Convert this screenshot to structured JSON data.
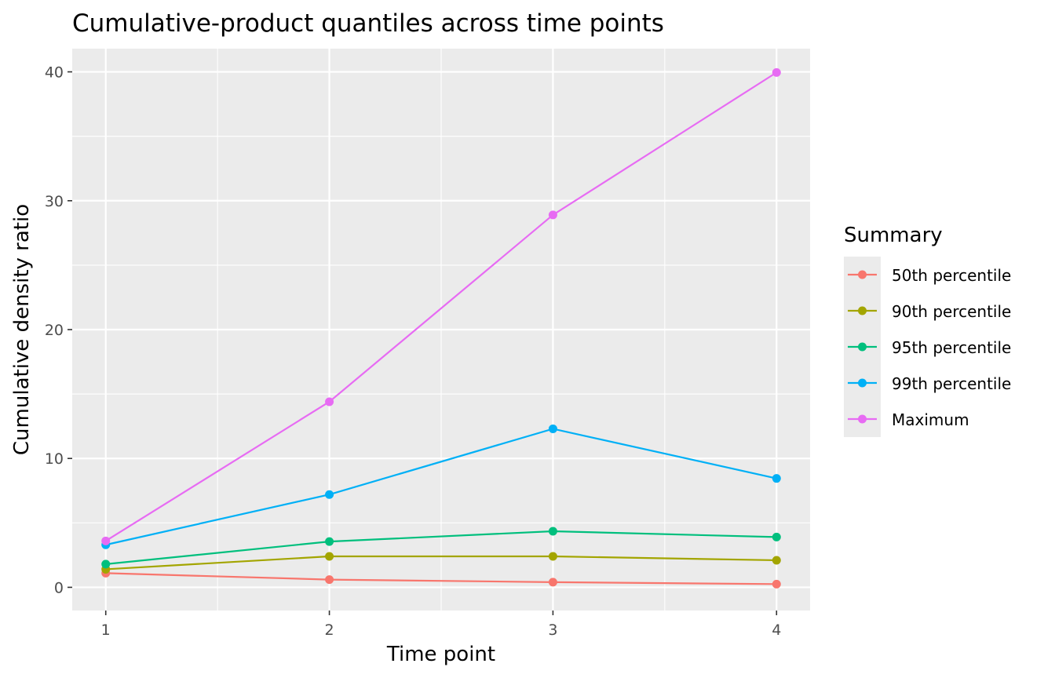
{
  "chart_data": {
    "type": "line",
    "title": "Cumulative-product quantiles across time points",
    "xlabel": "Time point",
    "ylabel": "Cumulative density ratio",
    "x": [
      1,
      2,
      3,
      4
    ],
    "x_ticks": [
      "1",
      "2",
      "3",
      "4"
    ],
    "y_ticks": [
      "0",
      "10",
      "20",
      "30",
      "40"
    ],
    "xlim": [
      0.85,
      4.15
    ],
    "ylim": [
      -1.8,
      41.8
    ],
    "grid": true,
    "legend_title": "Summary",
    "legend_position": "right",
    "series": [
      {
        "name": "50th percentile",
        "color": "#F8766D",
        "values": [
          1.1,
          0.6,
          0.4,
          0.25
        ]
      },
      {
        "name": "90th percentile",
        "color": "#A3A500",
        "values": [
          1.4,
          2.4,
          2.4,
          2.1
        ]
      },
      {
        "name": "95th percentile",
        "color": "#00BF7D",
        "values": [
          1.8,
          3.55,
          4.35,
          3.9
        ]
      },
      {
        "name": "99th percentile",
        "color": "#00B0F6",
        "values": [
          3.3,
          7.2,
          12.3,
          8.45
        ]
      },
      {
        "name": "Maximum",
        "color": "#E76BF3",
        "values": [
          3.6,
          14.4,
          28.9,
          39.95
        ]
      }
    ]
  }
}
